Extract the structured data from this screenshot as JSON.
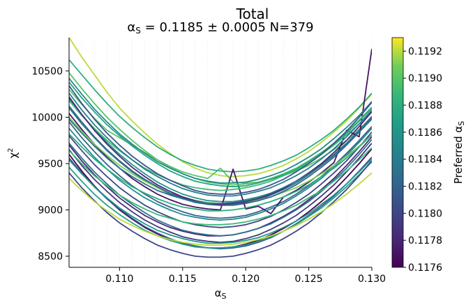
{
  "chart_data": {
    "type": "line",
    "title": "Total",
    "subtitle": "αS = 0.1185 ± 0.0005 N=379",
    "subtitle_parts": {
      "alpha": "α",
      "alpha_sub": "S",
      "rest": " = 0.1185 ± 0.0005 N=379"
    },
    "xlabel": "αS",
    "xlabel_parts": {
      "alpha": "α",
      "alpha_sub": "S"
    },
    "ylabel": "χ²",
    "ylabel_parts": {
      "chi": "χ",
      "chi_sup": "2"
    },
    "xlim": [
      0.106,
      0.13
    ],
    "ylim": [
      8380,
      10860
    ],
    "x_ticks": [
      0.11,
      0.115,
      0.12,
      0.125,
      0.13
    ],
    "x_tick_labels": [
      "0.110",
      "0.115",
      "0.120",
      "0.125",
      "0.130"
    ],
    "y_ticks": [
      8500,
      9000,
      9500,
      10000,
      10500
    ],
    "y_tick_labels": [
      "8500",
      "9000",
      "9500",
      "10000",
      "10500"
    ],
    "x_grid": [
      0.106,
      0.107,
      0.108,
      0.109,
      0.11,
      0.111,
      0.112,
      0.113,
      0.114,
      0.115,
      0.116,
      0.117,
      0.118,
      0.119,
      0.12,
      0.121,
      0.122,
      0.123,
      0.124,
      0.125,
      0.126,
      0.127,
      0.128,
      0.129,
      0.13
    ],
    "grid": true,
    "colormap": "viridis",
    "colorbar": {
      "label": "Preferred αS",
      "label_parts": {
        "text": "Preferred ",
        "alpha": "α",
        "alpha_sub": "S"
      },
      "range": [
        0.1176,
        0.1193
      ],
      "ticks": [
        0.1176,
        0.1178,
        0.118,
        0.1182,
        0.1184,
        0.1186,
        0.1188,
        0.119,
        0.1192
      ],
      "tick_labels": [
        "0.1176",
        "0.1178",
        "0.1180",
        "0.1182",
        "0.1184",
        "0.1186",
        "0.1188",
        "0.1190",
        "0.1192"
      ]
    },
    "series": [
      {
        "preferred": 0.1192,
        "y": [
          10860,
          10650,
          10460,
          10270,
          10100,
          9960,
          9830,
          9710,
          9610,
          9520,
          9450,
          9400,
          9370,
          9360,
          9370,
          9390,
          9430,
          9480,
          9550,
          9630,
          9730,
          9840,
          9960,
          10100,
          10250
        ]
      },
      {
        "preferred": 0.119,
        "y": [
          10300,
          10140,
          9990,
          9860,
          9780,
          9700,
          9620,
          9540,
          9470,
          9410,
          9370,
          9340,
          9450,
          9300,
          9290,
          9300,
          9330,
          9370,
          9420,
          9480,
          9560,
          9650,
          9750,
          9870,
          10000
        ]
      },
      {
        "preferred": 0.1188,
        "y": [
          10620,
          10460,
          10300,
          10150,
          10010,
          9890,
          9780,
          9680,
          9600,
          9530,
          9480,
          9440,
          9420,
          9410,
          9420,
          9440,
          9480,
          9530,
          9590,
          9670,
          9760,
          9860,
          9980,
          10110,
          10260
        ]
      },
      {
        "preferred": 0.1186,
        "y": [
          10200,
          10030,
          9870,
          9730,
          9600,
          9490,
          9390,
          9300,
          9230,
          9170,
          9130,
          9100,
          9090,
          9090,
          9110,
          9140,
          9180,
          9240,
          9310,
          9390,
          9490,
          9600,
          9720,
          9860,
          10010
        ]
      },
      {
        "preferred": 0.1184,
        "y": [
          10100,
          9930,
          9780,
          9640,
          9520,
          9410,
          9320,
          9240,
          9170,
          9120,
          9080,
          9060,
          9050,
          9060,
          9080,
          9110,
          9160,
          9220,
          9290,
          9380,
          9480,
          9590,
          9720,
          9860,
          10010
        ]
      },
      {
        "preferred": 0.1182,
        "y": [
          9950,
          9780,
          9630,
          9490,
          9370,
          9260,
          9170,
          9090,
          9030,
          8980,
          8940,
          8920,
          8910,
          8920,
          8940,
          8980,
          9030,
          9090,
          9170,
          9260,
          9360,
          9480,
          9610,
          9750,
          9900
        ]
      },
      {
        "preferred": 0.118,
        "y": [
          9800,
          9640,
          9490,
          9360,
          9240,
          9140,
          9050,
          8980,
          8920,
          8870,
          8840,
          8820,
          8810,
          8820,
          8840,
          8880,
          8930,
          9000,
          9080,
          9170,
          9280,
          9400,
          9530,
          9680,
          9840
        ]
      },
      {
        "preferred": 0.1178,
        "y": [
          9700,
          9530,
          9380,
          9250,
          9130,
          9030,
          8940,
          8870,
          8810,
          8770,
          8740,
          8720,
          8720,
          8730,
          8760,
          8800,
          8860,
          8930,
          9010,
          9110,
          9220,
          9340,
          9480,
          9630,
          9790
        ]
      },
      {
        "preferred": 0.1177,
        "y": [
          10040,
          9870,
          9710,
          9570,
          9450,
          9340,
          9250,
          9170,
          9110,
          9060,
          9030,
          9010,
          9000,
          9440,
          9010,
          9040,
          8960,
          9140,
          9210,
          9300,
          9400,
          9510,
          9860,
          9790,
          10740
        ]
      },
      {
        "preferred": 0.1176,
        "y": [
          9600,
          9420,
          9260,
          9120,
          9000,
          8900,
          8810,
          8740,
          8680,
          8640,
          8610,
          8590,
          8590,
          8600,
          8630,
          8670,
          8730,
          8800,
          8880,
          8980,
          9090,
          9210,
          9350,
          9500,
          9660
        ]
      },
      {
        "preferred": 0.119,
        "y": [
          10480,
          10310,
          10150,
          10000,
          9870,
          9750,
          9640,
          9540,
          9460,
          9390,
          9340,
          9300,
          9280,
          9270,
          9280,
          9300,
          9340,
          9390,
          9450,
          9530,
          9620,
          9720,
          9840,
          9970,
          10110
        ]
      },
      {
        "preferred": 0.1185,
        "y": [
          9880,
          9720,
          9570,
          9440,
          9320,
          9220,
          9130,
          9060,
          9000,
          8950,
          8920,
          8900,
          8890,
          8900,
          8920,
          8960,
          9010,
          9070,
          9150,
          9240,
          9340,
          9460,
          9590,
          9730,
          9880
        ]
      },
      {
        "preferred": 0.1187,
        "y": [
          10380,
          10210,
          10060,
          9920,
          9800,
          9690,
          9590,
          9500,
          9420,
          9360,
          9310,
          9280,
          9260,
          9250,
          9260,
          9290,
          9330,
          9380,
          9440,
          9520,
          9610,
          9710,
          9830,
          9960,
          10100
        ]
      },
      {
        "preferred": 0.1183,
        "y": [
          9720,
          9560,
          9410,
          9280,
          9160,
          9060,
          8970,
          8890,
          8830,
          8780,
          8750,
          8730,
          8720,
          8730,
          8760,
          8800,
          8850,
          8920,
          9000,
          9090,
          9200,
          9320,
          9450,
          9600,
          9760
        ]
      },
      {
        "preferred": 0.1189,
        "y": [
          10180,
          10020,
          9880,
          9750,
          9640,
          9540,
          9450,
          9380,
          9320,
          9270,
          9240,
          9220,
          9210,
          9220,
          9240,
          9270,
          9310,
          9370,
          9430,
          9510,
          9600,
          9700,
          9810,
          9930,
          10060
        ]
      },
      {
        "preferred": 0.1181,
        "y": [
          9560,
          9400,
          9250,
          9120,
          9010,
          8910,
          8820,
          8750,
          8690,
          8640,
          8610,
          8590,
          8580,
          8590,
          8610,
          8650,
          8700,
          8770,
          8850,
          8940,
          9040,
          9150,
          9280,
          9420,
          9570
        ]
      },
      {
        "preferred": 0.1191,
        "y": [
          10000,
          9850,
          9710,
          9590,
          9480,
          9390,
          9310,
          9240,
          9180,
          9140,
          9100,
          9080,
          9070,
          9070,
          9090,
          9110,
          9140,
          9190,
          9240,
          9310,
          9390,
          9480,
          9580,
          9690,
          9810
        ]
      },
      {
        "preferred": 0.1184,
        "y": [
          10260,
          10080,
          9920,
          9780,
          9650,
          9540,
          9440,
          9360,
          9290,
          9230,
          9190,
          9160,
          9150,
          9150,
          9170,
          9200,
          9240,
          9300,
          9370,
          9450,
          9550,
          9660,
          9790,
          9930,
          10080
        ]
      },
      {
        "preferred": 0.1179,
        "y": [
          9650,
          9480,
          9330,
          9200,
          9080,
          8980,
          8890,
          8820,
          8760,
          8710,
          8680,
          8660,
          8650,
          8660,
          8690,
          8730,
          8790,
          8860,
          8940,
          9040,
          9150,
          9270,
          9410,
          9560,
          9720
        ]
      },
      {
        "preferred": 0.1186,
        "y": [
          9540,
          9390,
          9250,
          9130,
          9020,
          8930,
          8850,
          8780,
          8730,
          8690,
          8660,
          8640,
          8640,
          8650,
          8670,
          8700,
          8750,
          8810,
          8880,
          8960,
          9060,
          9160,
          9280,
          9410,
          9550
        ]
      },
      {
        "preferred": 0.1188,
        "y": [
          9820,
          9680,
          9550,
          9440,
          9340,
          9250,
          9180,
          9120,
          9070,
          9030,
          9010,
          8990,
          8990,
          9000,
          9020,
          9050,
          9090,
          9140,
          9200,
          9270,
          9360,
          9450,
          9560,
          9680,
          9810
        ]
      },
      {
        "preferred": 0.1182,
        "y": [
          10120,
          9950,
          9790,
          9650,
          9530,
          9420,
          9330,
          9250,
          9180,
          9130,
          9090,
          9060,
          9050,
          9050,
          9070,
          9100,
          9140,
          9200,
          9270,
          9360,
          9460,
          9570,
          9700,
          9840,
          9990
        ]
      },
      {
        "preferred": 0.1187,
        "y": [
          9460,
          9310,
          9170,
          9050,
          8950,
          8860,
          8780,
          8720,
          8670,
          8630,
          8600,
          8590,
          8590,
          8600,
          8620,
          8660,
          8710,
          8770,
          8840,
          8930,
          9020,
          9130,
          9250,
          9380,
          9520
        ]
      },
      {
        "preferred": 0.1178,
        "y": [
          10220,
          10030,
          9860,
          9710,
          9580,
          9460,
          9360,
          9270,
          9200,
          9140,
          9100,
          9070,
          9060,
          9070,
          9090,
          9120,
          9170,
          9230,
          9310,
          9400,
          9500,
          9620,
          9750,
          9900,
          10060
        ]
      },
      {
        "preferred": 0.118,
        "y": [
          9400,
          9240,
          9100,
          8970,
          8860,
          8770,
          8690,
          8620,
          8570,
          8530,
          8500,
          8490,
          8490,
          8500,
          8530,
          8570,
          8620,
          8690,
          8770,
          8860,
          8970,
          9090,
          9220,
          9370,
          9530
        ]
      },
      {
        "preferred": 0.1185,
        "y": [
          10420,
          10250,
          10090,
          9950,
          9820,
          9710,
          9610,
          9520,
          9450,
          9390,
          9340,
          9310,
          9290,
          9290,
          9300,
          9330,
          9370,
          9420,
          9490,
          9570,
          9660,
          9770,
          9890,
          10020,
          10170
        ]
      },
      {
        "preferred": 0.1183,
        "y": [
          9980,
          9830,
          9690,
          9560,
          9450,
          9360,
          9280,
          9210,
          9160,
          9120,
          9090,
          9070,
          9070,
          9080,
          9100,
          9130,
          9180,
          9240,
          9310,
          9390,
          9480,
          9590,
          9710,
          9840,
          9980
        ]
      },
      {
        "preferred": 0.1189,
        "y": [
          9640,
          9500,
          9370,
          9260,
          9160,
          9080,
          9010,
          8950,
          8910,
          8870,
          8850,
          8840,
          8840,
          8850,
          8870,
          8900,
          8940,
          8990,
          9050,
          9130,
          9210,
          9310,
          9420,
          9540,
          9670
        ]
      },
      {
        "preferred": 0.1181,
        "y": [
          10340,
          10150,
          9980,
          9830,
          9700,
          9580,
          9480,
          9390,
          9320,
          9260,
          9210,
          9180,
          9170,
          9170,
          9190,
          9220,
          9270,
          9330,
          9410,
          9500,
          9600,
          9720,
          9850,
          10000,
          10160
        ]
      },
      {
        "preferred": 0.1192,
        "y": [
          9340,
          9210,
          9090,
          8990,
          8900,
          8830,
          8770,
          8720,
          8680,
          8650,
          8630,
          8620,
          8620,
          8630,
          8650,
          8680,
          8720,
          8770,
          8830,
          8900,
          8980,
          9070,
          9170,
          9280,
          9400
        ]
      }
    ]
  }
}
